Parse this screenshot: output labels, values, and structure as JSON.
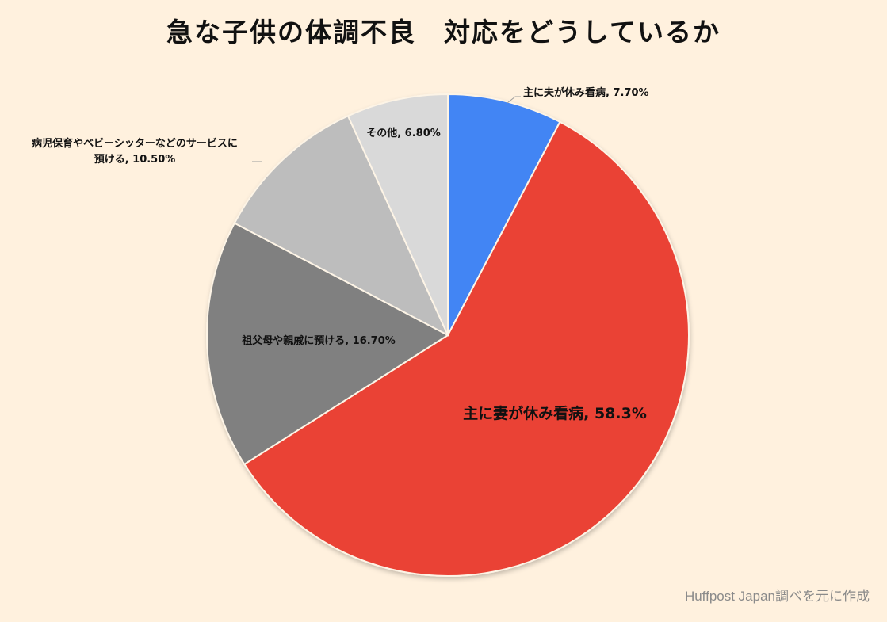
{
  "chart_data": {
    "type": "pie",
    "title": "急な子供の体調不良　対応をどうしているか",
    "slices": [
      {
        "label": "主に夫が休み看病, 7.70%",
        "value": 7.7,
        "color": "#4285f4"
      },
      {
        "label": "主に妻が休み看病, 58.3%",
        "value": 58.3,
        "color": "#ea4335"
      },
      {
        "label": "祖父母や親戚に預ける, 16.70%",
        "value": 16.7,
        "color": "#808080"
      },
      {
        "label": "病児保育やベビーシッターなどのサービスに預ける, 10.50%",
        "value": 10.5,
        "color": "#bdbdbd"
      },
      {
        "label": "その他, 6.80%",
        "value": 6.8,
        "color": "#d9d9d9"
      }
    ],
    "start_angle": "12 o'clock",
    "direction": "clockwise",
    "label_lines": {
      "slice_3": [
        "病児保育やベビーシッターなどのサービスに",
        "預ける, 10.50%"
      ]
    }
  },
  "source": "Huffpost Japan調べを元に作成"
}
